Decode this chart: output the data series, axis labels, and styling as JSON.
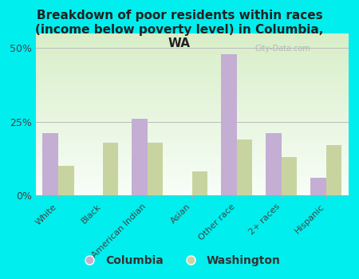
{
  "title": "Breakdown of poor residents within races\n(income below poverty level) in Columbia,\nWA",
  "categories": [
    "White",
    "Black",
    "American Indian",
    "Asian",
    "Other race",
    "2+ races",
    "Hispanic"
  ],
  "columbia_values": [
    21,
    0,
    26,
    0,
    48,
    21,
    6
  ],
  "washington_values": [
    10,
    18,
    18,
    8,
    19,
    13,
    17
  ],
  "columbia_color": "#c4aed4",
  "washington_color": "#c8d4a0",
  "background_color": "#00eeee",
  "plot_bg_top": "#d8eec8",
  "plot_bg_bottom": "#f8fef8",
  "ylim": [
    0,
    55
  ],
  "yticks": [
    0,
    25,
    50
  ],
  "ytick_labels": [
    "0%",
    "25%",
    "50%"
  ],
  "watermark": "City-Data.com",
  "legend_columbia": "Columbia",
  "legend_washington": "Washington",
  "title_fontsize": 11,
  "bar_width": 0.35
}
